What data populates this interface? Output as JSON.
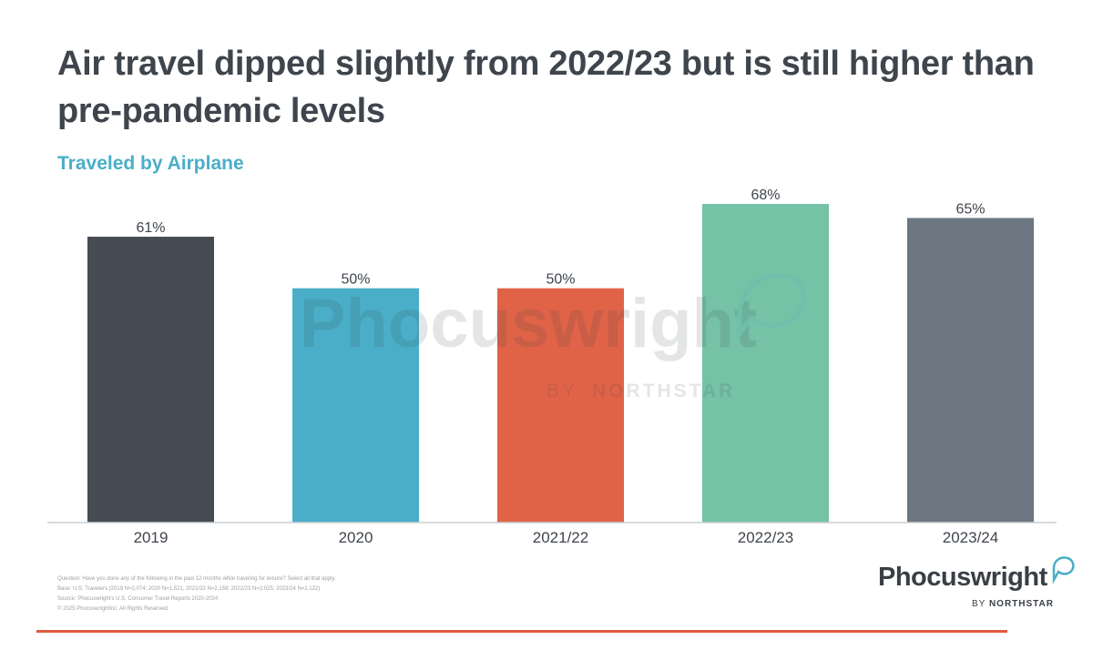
{
  "header": {
    "title": "Air travel dipped slightly from 2022/23 but is still higher than pre-pandemic levels",
    "subtitle": "Traveled by Airplane"
  },
  "chart_data": {
    "type": "bar",
    "title": "Air travel dipped slightly from 2022/23 but is still higher than pre-pandemic levels",
    "subtitle": "Traveled by Airplane",
    "categories": [
      "2019",
      "2020",
      "2021/22",
      "2022/23",
      "2023/24"
    ],
    "values": [
      61,
      50,
      50,
      68,
      65
    ],
    "value_labels": [
      "61%",
      "50%",
      "50%",
      "68%",
      "65%"
    ],
    "colors": [
      "#464c53",
      "#4aaec8",
      "#e06348",
      "#75c2a7",
      "#6c7782"
    ],
    "unit": "%",
    "ylim": [
      0,
      68
    ],
    "grid": false,
    "legend": "none"
  },
  "watermark": {
    "word": "Phocuswright",
    "by": "BY",
    "brand": "NORTHSTAR"
  },
  "footnotes": [
    "Question: Have you done any of the following in the past 12 months while traveling for leisure? Select all that apply.",
    "Base: U.S. Travelers (2019 N=2,074; 2020 N=1,521; 2021/22 N=2,158; 2022/23 N=2,025; 2023/24 N=2,122)",
    "Source: Phocuswright's U.S. Consumer Travel Reports 2020-2024",
    "© 2025 PhocuswrightInc. All Rights Reserved."
  ],
  "logo": {
    "word": "Phocuswright",
    "by": "BY",
    "brand": "NORTHSTAR",
    "accent": "#4aaec8"
  }
}
